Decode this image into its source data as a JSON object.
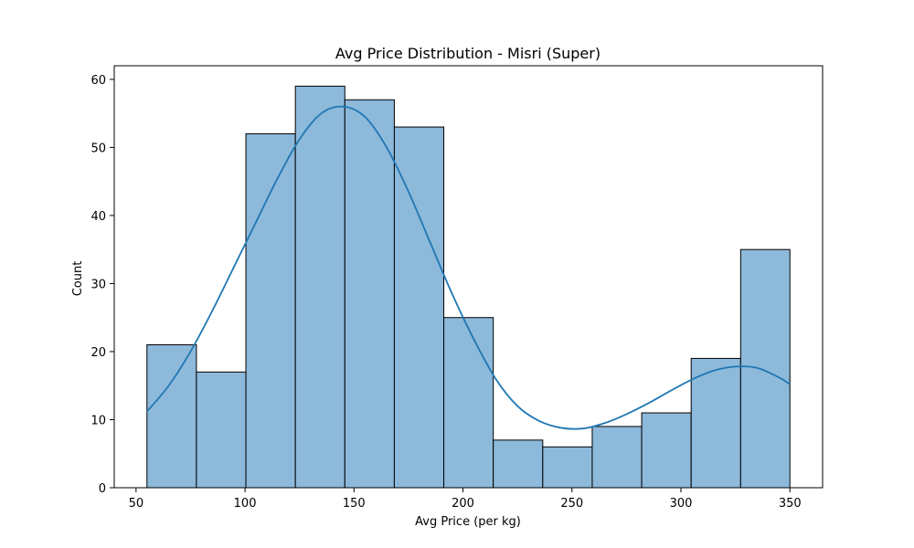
{
  "chart_data": {
    "type": "bar",
    "subtype": "histogram",
    "title": "Avg Price Distribution - Misri (Super)",
    "xlabel": "Avg Price (per kg)",
    "ylabel": "Count",
    "xlim": [
      40,
      365
    ],
    "ylim": [
      0,
      62
    ],
    "x_ticks": [
      50,
      100,
      150,
      200,
      250,
      300,
      350
    ],
    "y_ticks": [
      0,
      10,
      20,
      30,
      40,
      50,
      60
    ],
    "grid": false,
    "bin_edges": [
      55,
      77.7,
      100.4,
      123.1,
      145.8,
      168.5,
      191.2,
      213.9,
      236.6,
      259.3,
      282,
      304.7,
      327.4,
      350
    ],
    "counts": [
      21,
      17,
      52,
      59,
      57,
      53,
      25,
      7,
      6,
      9,
      11,
      19,
      35
    ],
    "kde": {
      "x": [
        55,
        65,
        75,
        85,
        95,
        105,
        115,
        125,
        135,
        145,
        155,
        165,
        175,
        185,
        195,
        205,
        215,
        225,
        235,
        245,
        255,
        265,
        275,
        285,
        295,
        305,
        315,
        325,
        335,
        345,
        350
      ],
      "y": [
        11.2,
        15,
        20,
        26,
        32.5,
        39,
        45.5,
        51.2,
        55,
        56,
        54.5,
        50,
        43.5,
        36,
        28.5,
        21.8,
        16,
        12,
        9.8,
        8.8,
        8.7,
        9.5,
        10.8,
        12.4,
        14.2,
        15.9,
        17.2,
        17.8,
        17.6,
        16.2,
        15.2
      ]
    },
    "colors": {
      "bar_fill": "#8db9da",
      "bar_edge": "#000000",
      "kde_line": "#1f77b4"
    }
  }
}
